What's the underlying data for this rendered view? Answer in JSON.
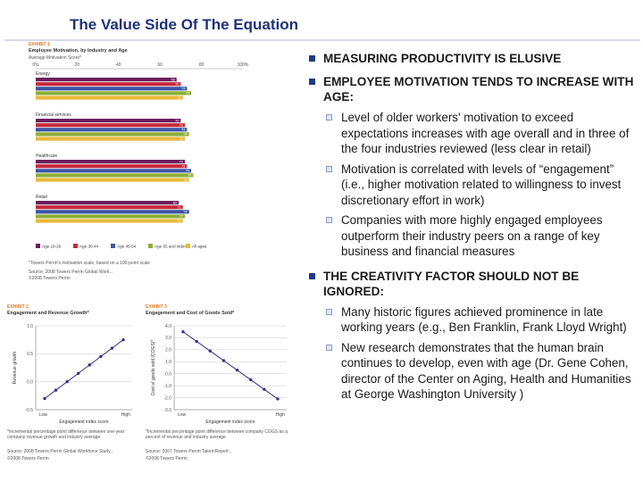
{
  "slide": {
    "title": "The Value Side Of The Equation"
  },
  "exhibit1": {
    "label": "EXHIBIT 1",
    "title": "Employee Motivation, by Industry and Age",
    "subtitle": "Average Motivation Score*",
    "axis_ticks": [
      "0%",
      "20",
      "40",
      "60",
      "80",
      "100%"
    ],
    "footnote": "*Towers Perrin's motivation scale, based on a 100-point scale",
    "source": "Source: 2008 Towers Perrin Global Work...",
    "copyright": "©2008 Towers Perrin"
  },
  "chart_data": [
    {
      "type": "bar",
      "orientation": "horizontal",
      "title": "Employee Motivation, by Industry and Age",
      "xlabel": "Average Motivation Score*",
      "xlim": [
        0,
        100
      ],
      "categories": [
        "Energy",
        "Financial services",
        "Healthcare",
        "Retail"
      ],
      "series": [
        {
          "name": "Age 18-29",
          "color": "#6b1d5c",
          "values": [
            68,
            70,
            72,
            69
          ]
        },
        {
          "name": "Age 30-44",
          "color": "#c62a3b",
          "values": [
            70,
            72,
            73,
            71
          ]
        },
        {
          "name": "Age 45-54",
          "color": "#3a56a6",
          "values": [
            73,
            73,
            75,
            74
          ]
        },
        {
          "name": "Age 55 and older",
          "color": "#8cae34",
          "values": [
            75,
            74,
            76,
            72
          ]
        },
        {
          "name": "All ages",
          "color": "#e9b73a",
          "values": [
            71,
            72,
            74,
            71
          ]
        }
      ],
      "value_labels": {
        "Energy": [
          "68",
          "70",
          "73",
          "75",
          "71"
        ],
        "Financial services": [
          "70",
          "72",
          "73",
          "74",
          "72"
        ],
        "Healthcare": [
          "72",
          "73",
          "75",
          "76",
          "74"
        ],
        "Retail": [
          "69",
          "71",
          "74",
          "72",
          "71"
        ]
      }
    },
    {
      "type": "line",
      "title": "Engagement and Revenue Growth*",
      "exhibit": "EXHIBIT 2",
      "xlabel": "Engagement index score",
      "ylabel": "Revenue growth",
      "x_ticks": [
        "Low",
        "High"
      ],
      "y_ticks": [
        "1.0",
        "0.5",
        "0.0",
        "-0.5"
      ],
      "ylim": [
        -0.5,
        1.0
      ],
      "x": [
        1,
        2,
        3,
        4,
        5,
        6,
        7,
        8
      ],
      "values": [
        -0.3,
        -0.15,
        0.0,
        0.15,
        0.3,
        0.45,
        0.6,
        0.75
      ],
      "color": "#3a2f8f"
    },
    {
      "type": "line",
      "title": "Engagement and Cost of Goods Sold*",
      "exhibit": "EXHIBIT 3",
      "xlabel": "Engagement index score",
      "ylabel": "Cost of goods sold (COGS)*",
      "x_ticks": [
        "Low",
        "High"
      ],
      "y_ticks": [
        "4.0",
        "3.0",
        "2.0",
        "1.0",
        "0.0",
        "-1.0",
        "-2.0",
        "-3.0"
      ],
      "ylim": [
        -3.0,
        4.0
      ],
      "x": [
        1,
        2,
        3,
        4,
        5,
        6,
        7,
        8
      ],
      "values": [
        3.5,
        2.7,
        1.9,
        1.1,
        0.3,
        -0.5,
        -1.3,
        -2.1
      ],
      "color": "#3a2f8f"
    }
  ],
  "exhibit2": {
    "footnote": "*Incremental percentage point difference between one-year company revenue growth and industry average",
    "source": "Source: 2008 Towers Perrin Global Workforce Study...",
    "copyright": "©2008 Towers Perrin"
  },
  "exhibit3": {
    "footnote": "*Incremental percentage point difference between company COGS as a percent of revenue and industry average",
    "source": "Source: 2007 Towers Perrin Talent Report...",
    "copyright": "©2008 Towers Perrin"
  },
  "bullets": [
    {
      "heading": "MEASURING PRODUCTIVITY IS ELUSIVE",
      "items": []
    },
    {
      "heading": "EMPLOYEE MOTIVATION TENDS TO INCREASE WITH AGE:",
      "items": [
        "Level of older workers' motivation  to exceed expectations increases with age overall and in three of the four industries reviewed (less clear in retail)",
        "Motivation is correlated with levels of “engagement” (i.e., higher motivation related to willingness to invest discretionary effort in work)",
        "Companies with more highly engaged employees outperform their industry peers on a range of key business and financial measures"
      ]
    },
    {
      "heading": "THE CREATIVITY FACTOR SHOULD NOT BE IGNORED:",
      "items": [
        "Many historic figures achieved prominence in late working years (e.g., Ben Franklin, Frank Lloyd Wright)",
        "New research demonstrates that the human brain continues to develop, even with age (Dr. Gene Cohen, director of the Center on Aging, Health and Humanities at George Washington University )"
      ]
    }
  ]
}
